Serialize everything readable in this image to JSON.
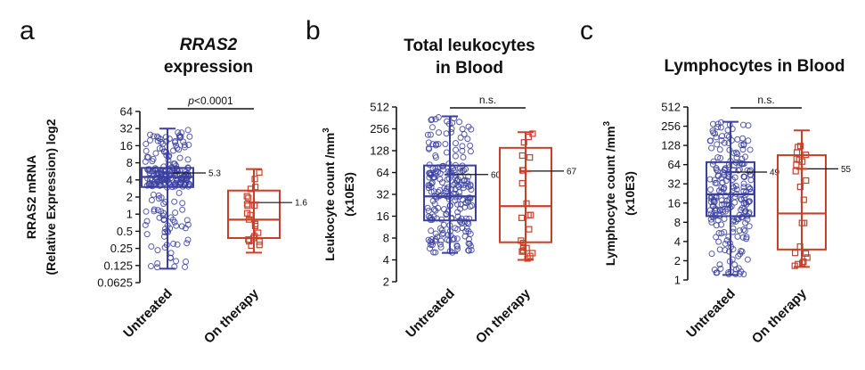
{
  "chart_data": [
    {
      "type": "box",
      "panel": "a",
      "title_italic": "RRAS2",
      "title": "expression",
      "ylabel": [
        "RRAS2 mRNA",
        "(Relative Expression) log2"
      ],
      "yscale": "log2",
      "ylim": [
        0.0625,
        64
      ],
      "yticks": [
        64,
        32,
        16,
        8,
        4,
        2,
        1,
        0.5,
        0.25,
        0.125,
        0.0625
      ],
      "ytick_labels": [
        "64",
        "32",
        "16",
        "8",
        "4",
        "2",
        "1",
        "0.5",
        "0.25",
        "0.125",
        "0.0625"
      ],
      "categories": [
        "Untreated",
        "On therapy"
      ],
      "colors": [
        "#3a3fa0",
        "#c9402a"
      ],
      "boxes": [
        {
          "min": 0.11,
          "q1": 3.0,
          "median": 4.5,
          "q3": 6.5,
          "max": 32,
          "mean": 5.3,
          "mean_label": "5.3",
          "n": 230
        },
        {
          "min": 0.21,
          "q1": 0.38,
          "median": 0.8,
          "q3": 2.6,
          "max": 6.2,
          "mean": 1.6,
          "mean_label": "1.6",
          "n": 22
        }
      ],
      "significance": {
        "prefix": "p",
        "text": "<0.0001"
      }
    },
    {
      "type": "box",
      "panel": "b",
      "title": [
        "Total leukocytes",
        "in Blood"
      ],
      "ylabel": [
        "Leukocyte count /mm",
        "(x10E3)"
      ],
      "ylabel_sup": "3",
      "yscale": "log2",
      "ylim": [
        2,
        512
      ],
      "yticks": [
        512,
        256,
        128,
        64,
        32,
        16,
        8,
        4,
        2
      ],
      "ytick_labels": [
        "512",
        "256",
        "128",
        "64",
        "32",
        "16",
        "8",
        "4",
        "2"
      ],
      "categories": [
        "Untreated",
        "On therapy"
      ],
      "colors": [
        "#3a3fa0",
        "#c9402a"
      ],
      "boxes": [
        {
          "min": 5,
          "q1": 14,
          "median": 30,
          "q3": 80,
          "max": 380,
          "mean": 60,
          "mean_label": "60",
          "n": 230
        },
        {
          "min": 4,
          "q1": 7,
          "median": 22,
          "q3": 140,
          "max": 230,
          "mean": 67,
          "mean_label": "67",
          "n": 22
        }
      ],
      "significance": {
        "text": "n.s."
      }
    },
    {
      "type": "box",
      "panel": "c",
      "title": [
        "Lymphocytes in Blood"
      ],
      "ylabel": [
        "Lymphocyte count /mm",
        "(x10E3)"
      ],
      "ylabel_sup": "3",
      "yscale": "log2",
      "ylim": [
        1,
        512
      ],
      "yticks": [
        512,
        256,
        128,
        64,
        32,
        16,
        8,
        4,
        2,
        1
      ],
      "ytick_labels": [
        "512",
        "256",
        "128",
        "64",
        "32",
        "16",
        "8",
        "4",
        "2",
        "1"
      ],
      "categories": [
        "Untreated",
        "On therapy"
      ],
      "colors": [
        "#3a3fa0",
        "#c9402a"
      ],
      "boxes": [
        {
          "min": 1.2,
          "q1": 10,
          "median": 22,
          "q3": 70,
          "max": 300,
          "mean": 49,
          "mean_label": "49",
          "n": 230
        },
        {
          "min": 1.6,
          "q1": 3,
          "median": 11,
          "q3": 90,
          "max": 220,
          "mean": 55,
          "mean_label": "55",
          "n": 22
        }
      ],
      "significance": {
        "text": "n.s."
      }
    }
  ]
}
